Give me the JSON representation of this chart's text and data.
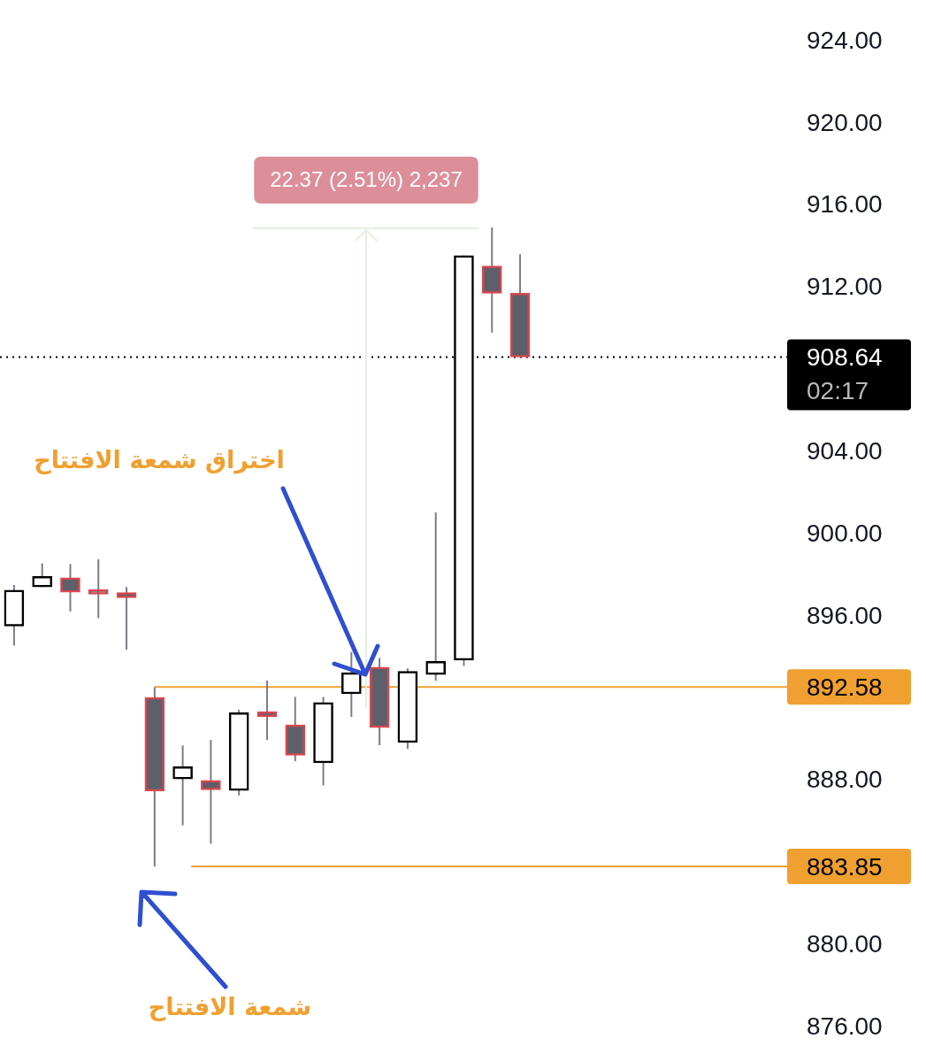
{
  "chart_data": {
    "type": "candlestick",
    "categories": [
      null,
      null,
      null,
      null,
      null,
      null,
      null,
      null,
      null,
      null,
      null,
      null,
      null,
      null,
      null,
      null,
      null,
      null,
      null,
      null,
      null,
      null,
      null,
      null,
      null,
      null,
      null,
      null
    ],
    "ohlc": [
      [
        895.55,
        897.55,
        894.6,
        897.3
      ],
      [
        897.45,
        898.6,
        897.45,
        897.97
      ],
      [
        897.9,
        898.57,
        896.26,
        897.2
      ],
      [
        897.32,
        898.8,
        895.93,
        897.1
      ],
      [
        897.18,
        897.45,
        894.4,
        896.93
      ],
      [
        892.07,
        892.58,
        883.85,
        887.51
      ],
      [
        888.11,
        889.74,
        885.85,
        888.7
      ],
      [
        888.04,
        890.01,
        884.95,
        887.58
      ],
      [
        887.55,
        891.47,
        887.3,
        891.33
      ],
      [
        891.38,
        892.9,
        890.01,
        891.13
      ],
      [
        890.74,
        892.1,
        888.97,
        889.26
      ],
      [
        888.89,
        892.1,
        887.79,
        891.83
      ],
      [
        892.25,
        894.29,
        891.13,
        893.28
      ],
      [
        893.55,
        894.0,
        889.75,
        890.61
      ],
      [
        889.88,
        893.49,
        889.57,
        893.35
      ],
      [
        893.19,
        901.08,
        892.89,
        893.83
      ],
      [
        893.89,
        913.58,
        893.61,
        913.58
      ],
      [
        913.08,
        914.95,
        909.83,
        911.75
      ],
      [
        911.75,
        913.65,
        908.64,
        908.64
      ],
      null,
      null,
      null,
      null,
      null,
      null,
      null,
      null,
      null
    ],
    "colors": [
      "#000000",
      "#000000",
      "#d9464f",
      "#d9464f",
      "#d9464f",
      "#d9464f",
      "#000000",
      "#d9464f",
      "#000000",
      "#d9464f",
      "#d9464f",
      "#000000",
      "#000000",
      "#d9464f",
      "#000000",
      "#000000",
      "#000000",
      "#d9464f",
      "#d9464f",
      null,
      null,
      null,
      null,
      null,
      null,
      null,
      null,
      null
    ],
    "ylim": [
      876,
      924
    ],
    "yticks": [
      {
        "value": 876,
        "label": "876.00"
      },
      {
        "value": 880,
        "label": "880.00"
      },
      {
        "value": 888,
        "label": "888.00"
      },
      {
        "value": 896,
        "label": "896.00"
      },
      {
        "value": 900,
        "label": "900.00"
      },
      {
        "value": 904,
        "label": "904.00"
      },
      {
        "value": 912,
        "label": "912.00"
      },
      {
        "value": 916,
        "label": "916.00"
      },
      {
        "value": 920,
        "label": "920.00"
      },
      {
        "value": 924,
        "label": "924.00"
      }
    ],
    "tick_labels": "y",
    "ref_lines": [
      {
        "axis": "y",
        "value": 908.64,
        "label": "908.64",
        "color": "#000000",
        "line_style": "dotted"
      },
      {
        "axis": "y",
        "value": 892.58,
        "label": "892.58",
        "color": "#f0a030",
        "line_style": "solid"
      },
      {
        "axis": "y",
        "value": 883.85,
        "label": "883.85",
        "color": "#f0a030",
        "line_style": "solid"
      }
    ],
    "annotations": [
      "22.37 (2.51%) 2,237",
      "02:17",
      "اختراق شمعة الافتتاح",
      "شمعة الافتتاح"
    ]
  }
}
